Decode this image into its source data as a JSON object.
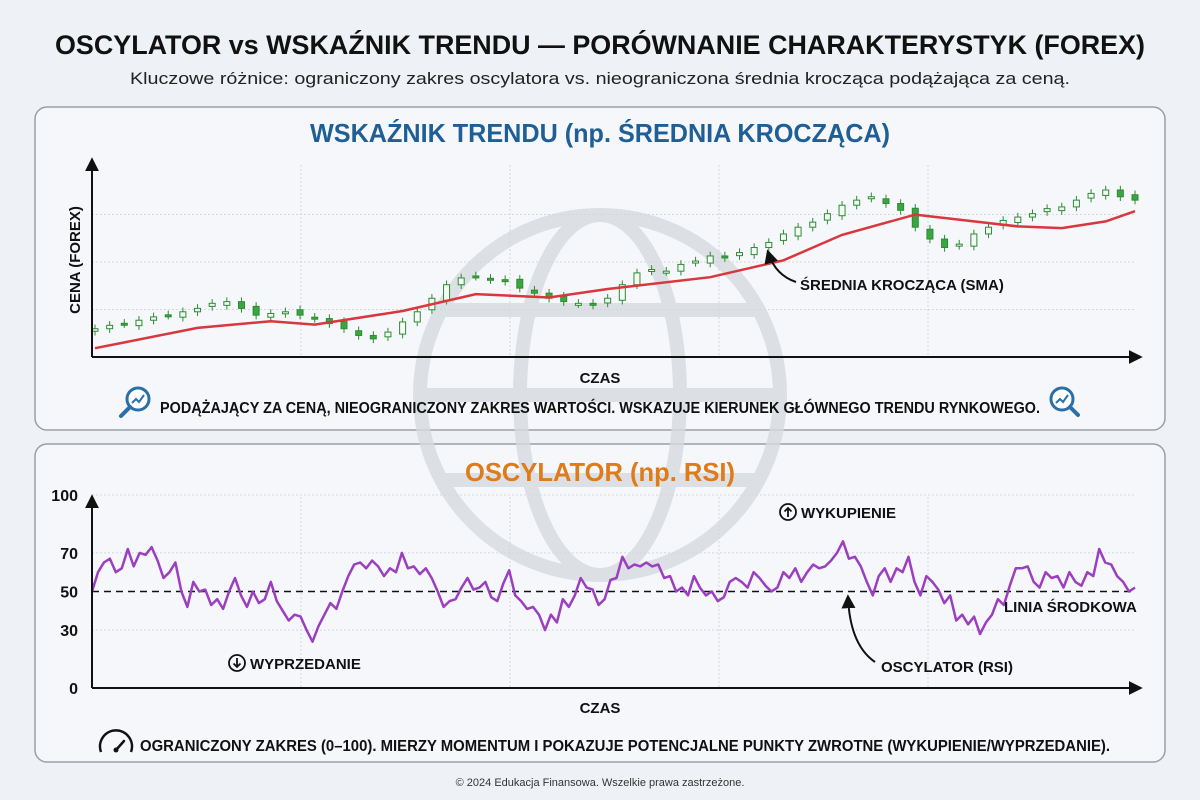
{
  "header": {
    "title": "OSCYLATOR vs WSKAŹNIK TRENDU — PORÓWNANIE CHARAKTERYSTYK (FOREX)",
    "subtitle": "Kluczowe różnice: ograniczony zakres oscylatora vs. nieograniczona średnia krocząca podążająca za ceną."
  },
  "colors": {
    "trend_title": "#1f5f96",
    "oscillator_title": "#e07b1a",
    "candle": "#3aa63f",
    "sma": "#d9363e",
    "rsi": "#9b3fc0",
    "icon": "#2a6fa8"
  },
  "chart_data": [
    {
      "type": "candlestick",
      "title": "WSKAŹNIK TRENDU (np. ŚREDNIA KROCZĄCA)",
      "xlabel": "CZAS",
      "ylabel": "CENA (FOREX)",
      "grid": true,
      "closes": [
        12,
        14,
        15,
        17,
        19,
        20,
        22,
        24,
        27,
        28,
        24,
        20,
        21,
        22,
        20,
        18,
        15,
        12,
        8,
        6,
        10,
        16,
        22,
        30,
        38,
        42,
        43,
        41,
        40,
        36,
        33,
        30,
        28,
        27,
        26,
        30,
        38,
        45,
        47,
        46,
        50,
        52,
        55,
        54,
        57,
        60,
        63,
        68,
        72,
        75,
        80,
        85,
        88,
        90,
        86,
        82,
        72,
        65,
        60,
        62,
        68,
        72,
        76,
        78,
        80,
        83,
        84,
        88,
        92,
        94,
        90,
        88
      ],
      "sma": [
        [
          0,
          4
        ],
        [
          7,
          16
        ],
        [
          12,
          20
        ],
        [
          15,
          18
        ],
        [
          21,
          26
        ],
        [
          26,
          36
        ],
        [
          31,
          34
        ],
        [
          35,
          39
        ],
        [
          42,
          46
        ],
        [
          47,
          56
        ],
        [
          51,
          71
        ],
        [
          56,
          83
        ],
        [
          60,
          79
        ],
        [
          63,
          76
        ],
        [
          66,
          75
        ],
        [
          69,
          79
        ],
        [
          71,
          85
        ]
      ],
      "annotation": "ŚREDNIA KROCZĄCA (SMA)",
      "caption": "PODĄŻAJĄCY ZA CENĄ, NIEOGRANICZONY ZAKRES WARTOŚCI. WSKAZUJE KIERUNEK GŁÓWNEGO TRENDU RYNKOWEGO."
    },
    {
      "type": "line",
      "title": "OSCYLATOR (np. RSI)",
      "xlabel": "CZAS",
      "ylim": [
        0,
        100
      ],
      "yticks": [
        "0",
        "30",
        "50",
        "70",
        "100"
      ],
      "ytick_values": [
        0,
        30,
        50,
        70,
        100
      ],
      "grid": true,
      "midline": 50,
      "values": [
        50,
        60,
        65,
        67,
        60,
        62,
        72,
        63,
        70,
        69,
        73,
        66,
        57,
        60,
        65,
        50,
        42,
        55,
        50,
        51,
        43,
        46,
        41,
        50,
        57,
        48,
        42,
        50,
        44,
        46,
        55,
        45,
        40,
        35,
        38,
        37,
        30,
        24,
        32,
        38,
        44,
        41,
        50,
        58,
        64,
        65,
        62,
        66,
        63,
        58,
        62,
        60,
        70,
        62,
        63,
        59,
        62,
        57,
        50,
        42,
        45,
        46,
        52,
        57,
        51,
        52,
        55,
        47,
        45,
        54,
        61,
        48,
        45,
        41,
        42,
        38,
        30,
        38,
        34,
        46,
        42,
        48,
        57,
        52,
        51,
        43,
        46,
        56,
        57,
        68,
        62,
        64,
        63,
        65,
        63,
        64,
        57,
        58,
        50,
        52,
        48,
        58,
        52,
        48,
        50,
        45,
        47,
        55,
        57,
        55,
        52,
        60,
        57,
        53,
        50,
        52,
        60,
        57,
        62,
        55,
        60,
        64,
        62,
        63,
        66,
        70,
        76,
        67,
        68,
        63,
        55,
        48,
        58,
        62,
        55,
        62,
        60,
        68,
        55,
        48,
        58,
        55,
        51,
        44,
        48,
        35,
        38,
        33,
        37,
        28,
        34,
        38,
        46,
        43,
        53,
        62,
        62,
        63,
        55,
        52,
        60,
        57,
        58,
        52,
        60,
        55,
        53,
        60,
        58,
        72,
        65,
        64,
        58,
        55,
        50,
        52
      ],
      "labels": {
        "overbought": "WYKUPIENIE",
        "oversold": "WYPRZEDANIE",
        "midline": "LINIA ŚRODKOWA",
        "series": "OSCYLATOR (RSI)"
      },
      "caption": "OGRANICZONY ZAKRES (0–100). MIERZY MOMENTUM I POKAZUJE POTENCJALNE PUNKTY ZWROTNE (WYKUPIENIE/WYPRZEDANIE)."
    }
  ],
  "icons": {
    "caption_left": "magnifier-trend-icon",
    "caption_right": "magnifier-trend-icon",
    "gauge": "gauge-icon",
    "overbought": "arrow-up-circle-icon",
    "oversold": "arrow-down-circle-icon",
    "watermark": "globe-watermark-icon"
  },
  "footer": "© 2024 Edukacja Finansowa. Wszelkie prawa zastrzeżone."
}
